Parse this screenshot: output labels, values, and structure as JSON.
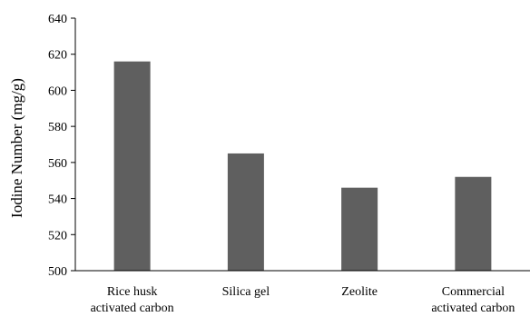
{
  "chart_data": {
    "type": "bar",
    "categories": [
      [
        "Rice husk",
        "activated carbon"
      ],
      [
        "Silica gel"
      ],
      [
        "Zeolite"
      ],
      [
        "Commercial",
        "activated carbon"
      ]
    ],
    "values": [
      616,
      565,
      546,
      552
    ],
    "ylabel": "Iodine Number (mg/g)",
    "ylim": [
      500,
      640
    ],
    "yticks": [
      500,
      520,
      540,
      560,
      580,
      600,
      620,
      640
    ],
    "grid": false,
    "bar_color": "#5f5f5f",
    "axis_color": "#000000"
  }
}
